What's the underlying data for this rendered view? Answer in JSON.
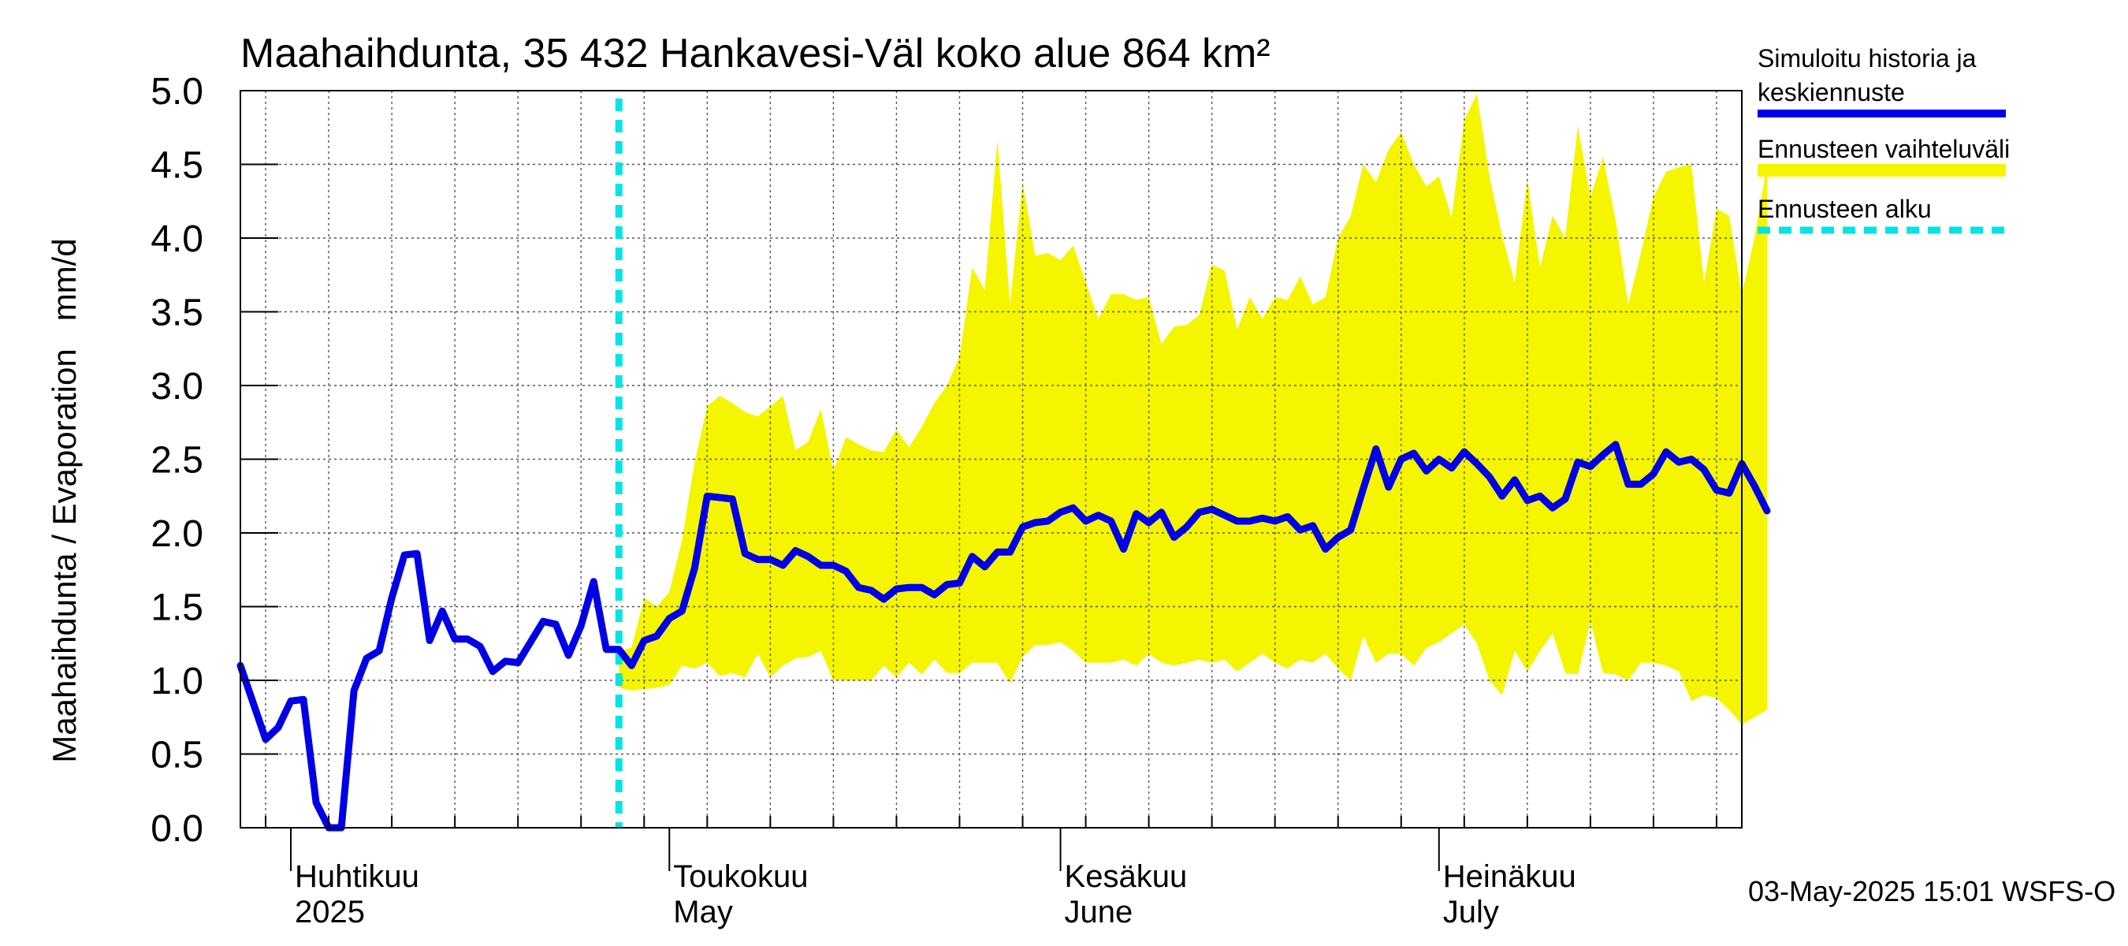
{
  "chart_data": {
    "type": "line",
    "title": "Maahaihdunta, 35 432 Hankavesi-Väl koko alue 864 km²",
    "ylabel": "Maahaihdunta / Evaporation   mm/d",
    "ylim": [
      0,
      5
    ],
    "yticks": [
      "0.0",
      "0.5",
      "1.0",
      "1.5",
      "2.0",
      "2.5",
      "3.0",
      "3.5",
      "4.0",
      "4.5",
      "5.0"
    ],
    "x_start_day": 0,
    "x_end_day": 119,
    "x_unit": "days since 2025-03-28",
    "months": [
      {
        "day": 4,
        "fi": "Huhtikuu",
        "en": "2025"
      },
      {
        "day": 34,
        "fi": "Toukokuu",
        "en": "May"
      },
      {
        "day": 65,
        "fi": "Kesäkuu",
        "en": "June"
      },
      {
        "day": 95,
        "fi": "Heinäkuu",
        "en": "July"
      }
    ],
    "forecast_start_day": 30,
    "history": [
      1.1,
      0.85,
      0.6,
      0.68,
      0.86,
      0.87,
      0.17,
      0.0,
      0.0,
      0.93,
      1.15,
      1.2,
      1.56,
      1.85,
      1.86,
      1.27,
      1.47,
      1.28,
      1.28,
      1.23,
      1.06,
      1.13,
      1.12,
      1.26,
      1.4,
      1.38,
      1.17,
      1.37,
      1.67,
      1.21,
      1.21
    ],
    "mean_forecast": [
      1.21,
      1.1,
      1.27,
      1.3,
      1.42,
      1.47,
      1.76,
      2.25,
      2.24,
      2.23,
      1.86,
      1.82,
      1.82,
      1.78,
      1.88,
      1.84,
      1.78,
      1.78,
      1.74,
      1.63,
      1.61,
      1.55,
      1.62,
      1.63,
      1.63,
      1.58,
      1.65,
      1.66,
      1.84,
      1.77,
      1.87,
      1.87,
      2.04,
      2.07,
      2.08,
      2.14,
      2.17,
      2.08,
      2.12,
      2.08,
      1.89,
      2.13,
      2.07,
      2.14,
      1.97,
      2.04,
      2.14,
      2.16,
      2.12,
      2.08,
      2.08,
      2.1,
      2.08,
      2.11,
      2.02,
      2.05,
      1.89,
      1.97,
      2.02,
      2.3,
      2.57,
      2.31,
      2.5,
      2.54,
      2.42,
      2.5,
      2.44,
      2.55,
      2.47,
      2.38,
      2.25,
      2.36,
      2.22,
      2.25,
      2.17,
      2.23,
      2.48,
      2.45,
      2.53,
      2.6,
      2.33,
      2.33,
      2.4,
      2.55,
      2.48,
      2.5,
      2.43,
      2.29,
      2.27,
      2.47,
      2.32,
      2.15
    ],
    "range_upper": [
      1.2,
      1.22,
      1.56,
      1.5,
      1.6,
      1.95,
      2.48,
      2.86,
      2.93,
      2.88,
      2.82,
      2.79,
      2.86,
      2.93,
      2.56,
      2.62,
      2.84,
      2.42,
      2.65,
      2.6,
      2.56,
      2.55,
      2.7,
      2.58,
      2.72,
      2.88,
      3.0,
      3.2,
      3.8,
      3.65,
      4.67,
      3.55,
      4.38,
      3.88,
      3.9,
      3.85,
      3.95,
      3.7,
      3.45,
      3.62,
      3.62,
      3.58,
      3.6,
      3.28,
      3.4,
      3.41,
      3.48,
      3.82,
      3.78,
      3.38,
      3.6,
      3.45,
      3.6,
      3.58,
      3.74,
      3.55,
      3.6,
      4.0,
      4.15,
      4.5,
      4.38,
      4.6,
      4.72,
      4.5,
      4.35,
      4.42,
      4.14,
      4.8,
      4.98,
      4.42,
      4.02,
      3.7,
      4.4,
      3.8,
      4.15,
      4.0,
      4.76,
      4.28,
      4.55,
      4.12,
      3.55,
      3.9,
      4.28,
      4.45,
      4.48,
      4.5,
      3.7,
      4.2,
      4.15,
      3.62,
      4.0,
      4.5
    ],
    "range_lower": [
      0.95,
      0.93,
      0.94,
      0.95,
      0.97,
      1.1,
      1.08,
      1.12,
      1.03,
      1.05,
      1.02,
      1.18,
      1.02,
      1.1,
      1.15,
      1.16,
      1.2,
      1.0,
      1.0,
      1.0,
      1.0,
      1.1,
      1.02,
      1.12,
      1.04,
      1.14,
      1.05,
      1.05,
      1.12,
      1.12,
      1.12,
      0.98,
      1.16,
      1.24,
      1.24,
      1.26,
      1.2,
      1.12,
      1.12,
      1.12,
      1.14,
      1.1,
      1.18,
      1.12,
      1.1,
      1.12,
      1.14,
      1.12,
      1.14,
      1.06,
      1.12,
      1.18,
      1.12,
      1.08,
      1.14,
      1.12,
      1.18,
      1.08,
      1.0,
      1.3,
      1.12,
      1.18,
      1.18,
      1.1,
      1.22,
      1.26,
      1.32,
      1.38,
      1.25,
      1.0,
      0.9,
      1.2,
      1.06,
      1.2,
      1.32,
      1.05,
      1.04,
      1.4,
      1.05,
      1.04,
      1.0,
      1.12,
      1.12,
      1.1,
      1.06,
      0.86,
      0.9,
      0.88,
      0.8,
      0.7,
      0.75,
      0.8
    ],
    "series_colors": {
      "history": "#0000e6",
      "range": "#f5f500",
      "forecast_start": "#00e5e5"
    },
    "legend": [
      {
        "label": "Simuloitu historia ja keskiennuste",
        "line1": "Simuloitu historia ja",
        "line2": "keskiennuste",
        "color": "#0000e6",
        "style": "solid"
      },
      {
        "label": "Ennusteen vaihteluväli",
        "color": "#f5f500",
        "style": "band"
      },
      {
        "label": "Ennusteen alku",
        "color": "#00e5e5",
        "style": "dashed"
      }
    ],
    "timestamp": "03-May-2025 15:01 WSFS-O"
  }
}
